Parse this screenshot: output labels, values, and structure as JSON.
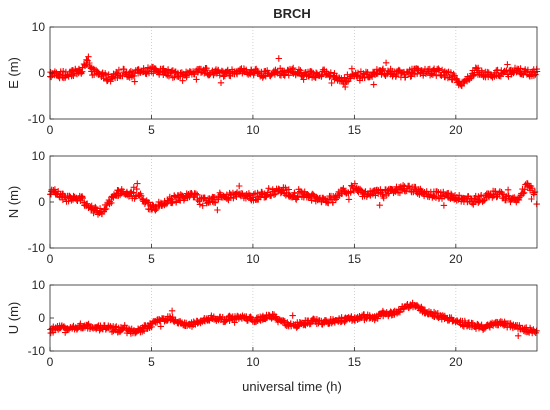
{
  "figure": {
    "title": "BRCH",
    "xlabel": "universal time (h)"
  },
  "colors": {
    "marker": "#ff0000",
    "axis": "#262626",
    "grid": "#c8c8c8",
    "background": "#ffffff"
  },
  "chart_data": [
    {
      "type": "scatter",
      "marker": "+",
      "ylabel": "E (m)",
      "xlim": [
        0,
        24
      ],
      "ylim": [
        -10,
        10
      ],
      "xticks": [
        0,
        5,
        10,
        15,
        20
      ],
      "yticks": [
        -10,
        0,
        10
      ],
      "grid": "vertical dotted at x ticks",
      "series": [
        {
          "x": [
            0,
            0.5,
            1,
            1.5,
            1.9,
            2,
            2.5,
            3,
            3.5,
            4,
            4.5,
            5,
            5.5,
            6,
            6.5,
            7,
            7.5,
            8,
            8.5,
            9,
            9.5,
            10,
            10.5,
            11,
            11.5,
            12,
            12.5,
            13,
            13.5,
            14,
            14.2,
            14.6,
            15,
            15.5,
            16,
            16.5,
            17,
            17.5,
            18,
            18.5,
            19,
            19.5,
            20,
            20.2,
            20.5,
            21,
            21.5,
            22,
            22.5,
            23,
            23.5,
            24
          ],
          "y": [
            -0.3,
            -0.5,
            0,
            0.2,
            3.2,
            0.5,
            -0.5,
            -1.2,
            0.2,
            -0.3,
            0.2,
            0.5,
            0.4,
            -0.2,
            -0.5,
            -0.2,
            0.5,
            0.2,
            -0.3,
            0.3,
            0.5,
            0.3,
            -0.3,
            0.3,
            0.2,
            0.3,
            -0.2,
            -0.3,
            0.1,
            -0.6,
            -1.2,
            -1.8,
            -0.5,
            -0.3,
            0,
            0.2,
            0,
            -0.3,
            0.3,
            0.2,
            0.3,
            -0.2,
            -0.9,
            -2.5,
            -1.3,
            0.6,
            -0.6,
            0.1,
            -0.2,
            0.8,
            -0.1,
            0.2
          ]
        }
      ]
    },
    {
      "type": "scatter",
      "marker": "+",
      "ylabel": "N (m)",
      "xlim": [
        0,
        24
      ],
      "ylim": [
        -10,
        10
      ],
      "xticks": [
        0,
        5,
        10,
        15,
        20
      ],
      "yticks": [
        -10,
        0,
        10
      ],
      "grid": "vertical dotted at x ticks",
      "series": [
        {
          "x": [
            0,
            0.5,
            1,
            1.5,
            2,
            2.5,
            3,
            3.5,
            4,
            4.5,
            5,
            5.5,
            6,
            6.5,
            7,
            7.5,
            8,
            8.5,
            9,
            9.5,
            10,
            10.5,
            11,
            11.5,
            12,
            12.5,
            13,
            13.5,
            14,
            14.5,
            15,
            15.5,
            16,
            16.5,
            17,
            17.5,
            18,
            18.5,
            19,
            19.5,
            20,
            20.5,
            21,
            21.5,
            22,
            22.5,
            23,
            23.5,
            24
          ],
          "y": [
            2.5,
            1.5,
            0.5,
            0.8,
            -1.5,
            -2.2,
            0.5,
            2.5,
            1.5,
            1,
            -1.5,
            -0.5,
            0.5,
            1,
            1.5,
            0.5,
            0.5,
            1.5,
            1.5,
            1.5,
            1,
            1.5,
            2,
            2.5,
            1.5,
            1.5,
            1,
            0.5,
            0.5,
            2.5,
            3,
            1.5,
            2,
            2,
            2.5,
            3,
            2.5,
            2,
            1.5,
            1.5,
            1,
            0.5,
            0.5,
            1,
            2,
            1,
            0.5,
            3.5,
            1.5
          ]
        }
      ]
    },
    {
      "type": "scatter",
      "marker": "+",
      "ylabel": "U (m)",
      "xlim": [
        0,
        24
      ],
      "ylim": [
        -10,
        10
      ],
      "xticks": [
        0,
        5,
        10,
        15,
        20
      ],
      "yticks": [
        -10,
        0,
        10
      ],
      "grid": "vertical dotted at x ticks",
      "series": [
        {
          "x": [
            0,
            0.5,
            1,
            1.5,
            2,
            2.5,
            3,
            3.5,
            4,
            4.5,
            5,
            5.5,
            6,
            6.5,
            7,
            7.5,
            8,
            8.5,
            9,
            9.5,
            10,
            10.5,
            11,
            11.5,
            12,
            12.5,
            13,
            13.5,
            14,
            14.5,
            15,
            15.5,
            16,
            16.5,
            17,
            17.5,
            18,
            18.5,
            19,
            19.5,
            20,
            20.5,
            21,
            21.5,
            22,
            22.5,
            23,
            23.5,
            24
          ],
          "y": [
            -4,
            -3,
            -3,
            -2.5,
            -2.5,
            -3,
            -3,
            -3.5,
            -4,
            -3.5,
            -2,
            -0.5,
            0,
            -1.5,
            -2,
            -1,
            0,
            -0.5,
            0,
            0,
            -0.5,
            0,
            0.5,
            -1.5,
            -2,
            -1.5,
            -1,
            -1.5,
            -1,
            -0.5,
            0,
            0.5,
            0,
            1,
            1.5,
            3.5,
            4,
            2,
            1,
            0,
            -1,
            -2,
            -2.5,
            -3,
            -1.5,
            -2,
            -2.5,
            -3.5,
            -4
          ]
        }
      ]
    }
  ]
}
